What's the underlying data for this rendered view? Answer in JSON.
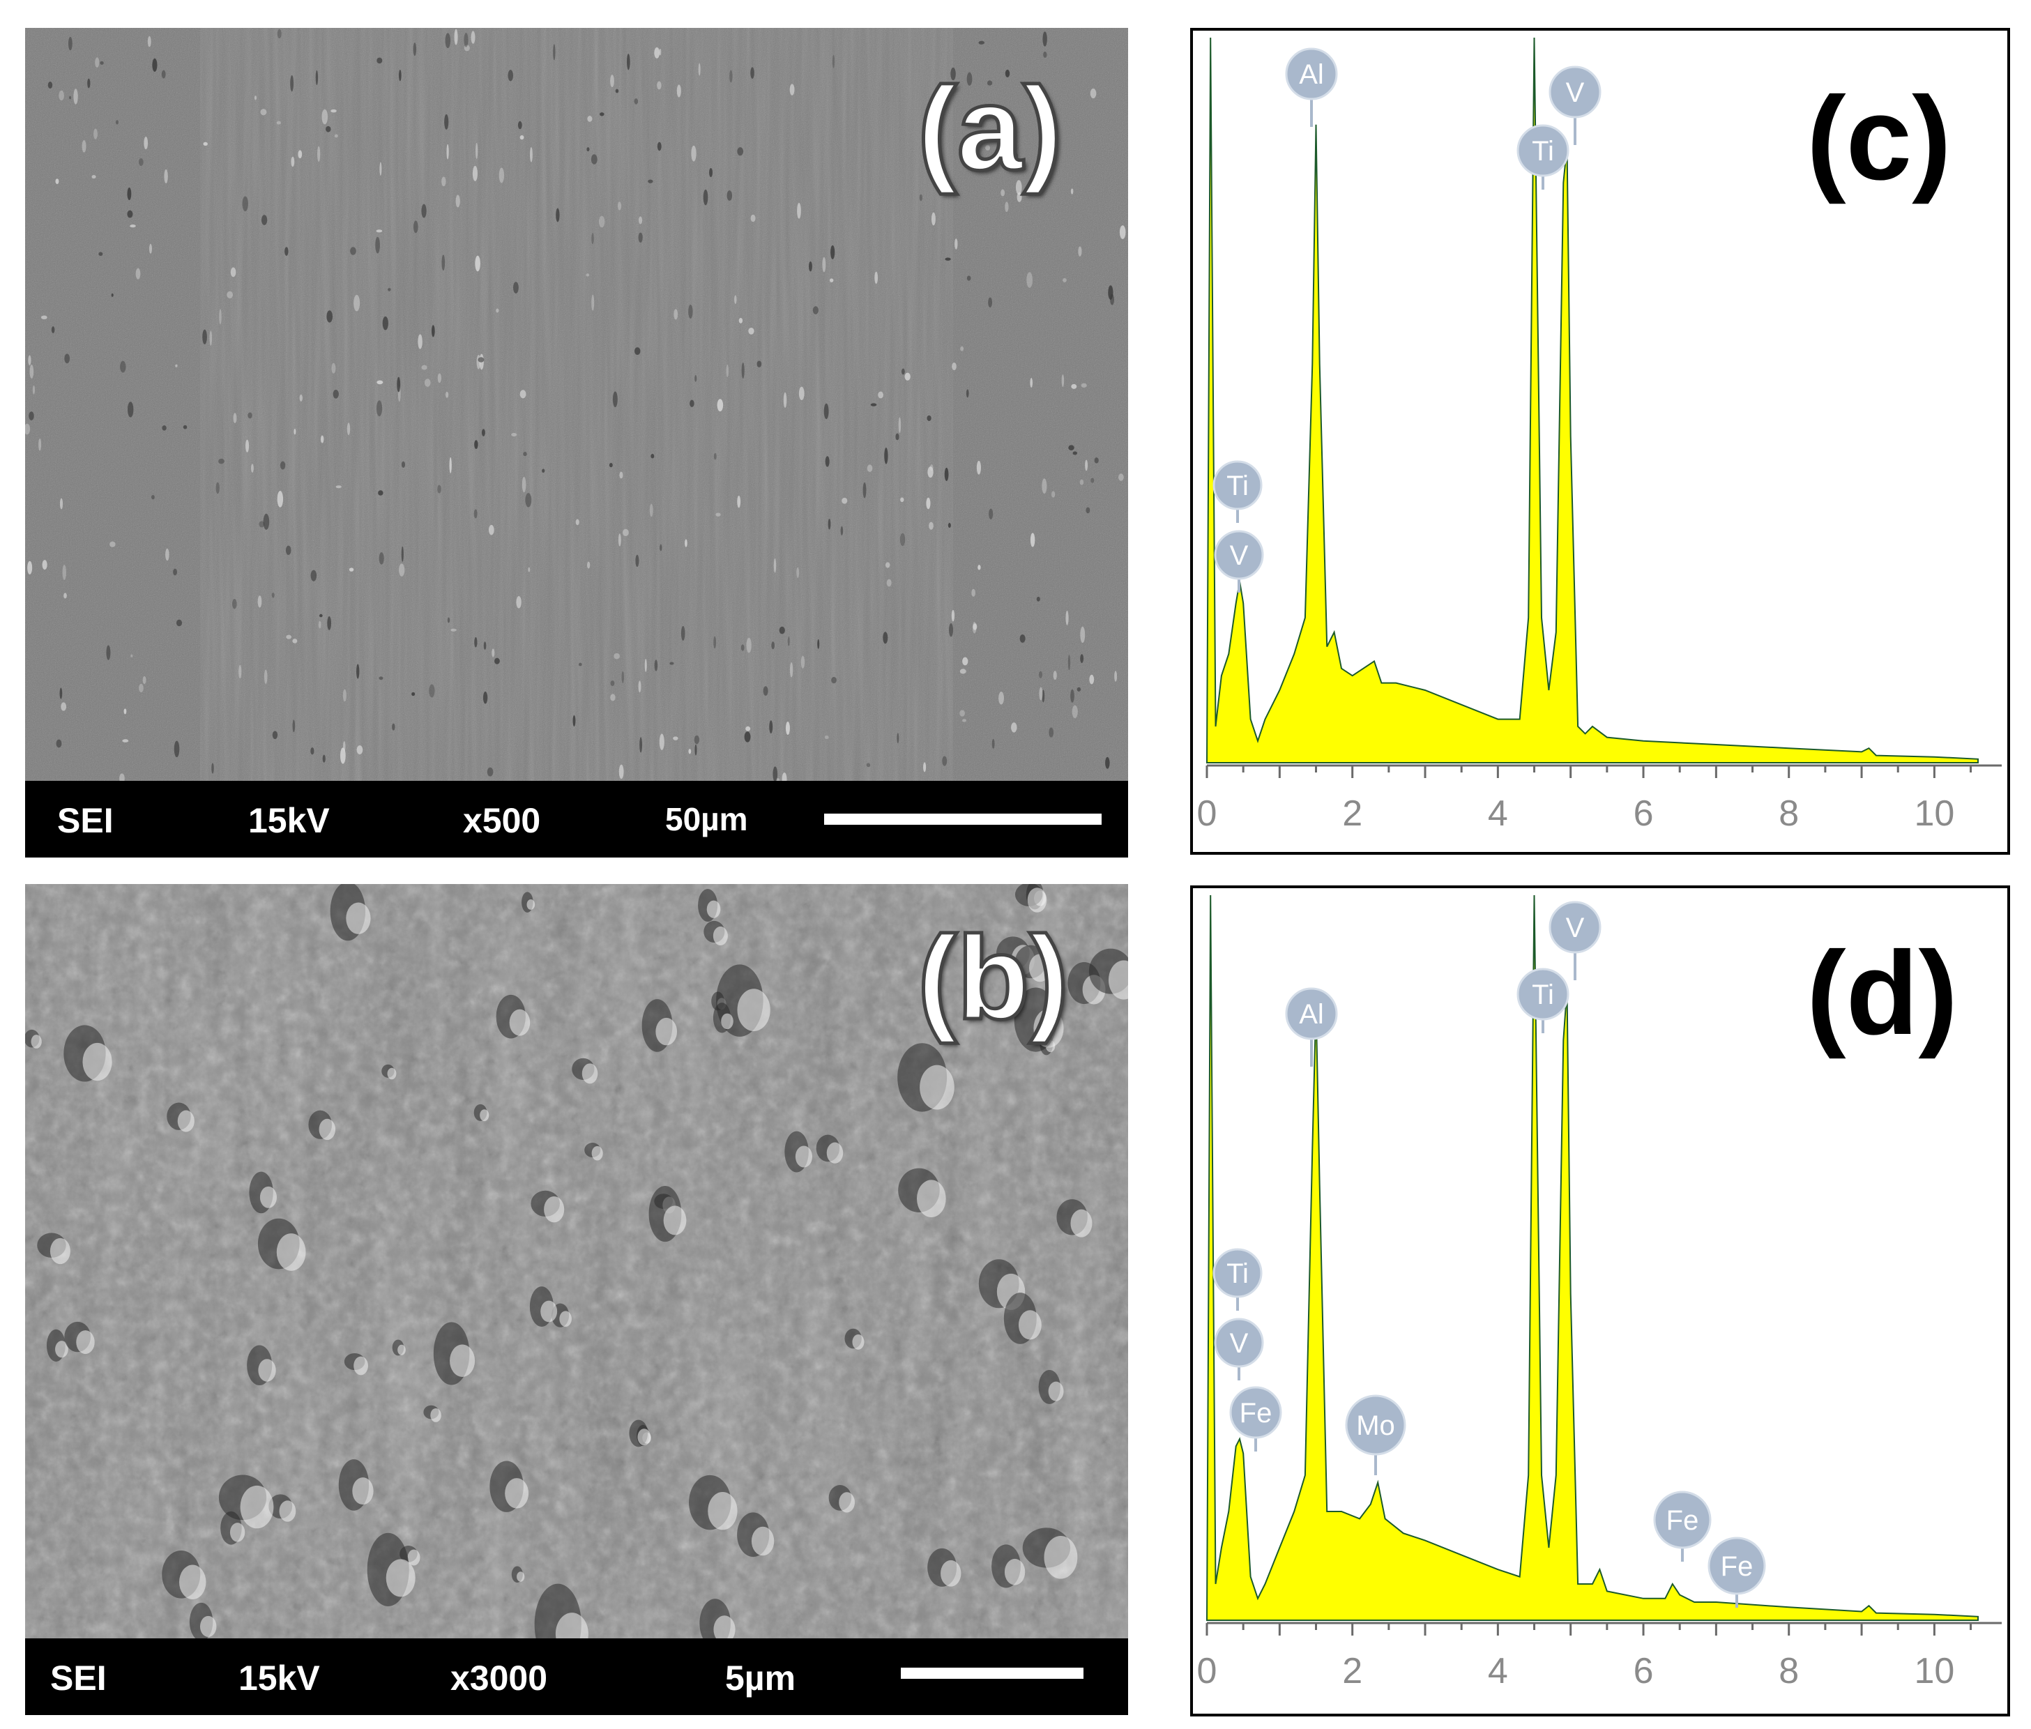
{
  "panels": {
    "a": {
      "label": "(a)",
      "mode": "SEI",
      "voltage": "15kV",
      "magnification": "x500",
      "scale": "50µm"
    },
    "b": {
      "label": "(b)",
      "mode": "SEI",
      "voltage": "15kV",
      "magnification": "x3000",
      "scale": "5µm"
    },
    "c": {
      "label": "(c)"
    },
    "d": {
      "label": "(d)"
    }
  },
  "chart_data": [
    {
      "type": "area",
      "panel": "(c)",
      "title": "",
      "xlabel": "",
      "ylabel": "",
      "xlim": [
        0,
        10.6
      ],
      "xticks": [
        0,
        2,
        4,
        6,
        8,
        10
      ],
      "fill_color": "#ffff00",
      "x": [
        0,
        0.05,
        0.12,
        0.2,
        0.3,
        0.4,
        0.45,
        0.5,
        0.6,
        0.7,
        0.8,
        1.0,
        1.2,
        1.35,
        1.45,
        1.5,
        1.55,
        1.65,
        1.75,
        1.85,
        2.0,
        2.3,
        2.4,
        2.6,
        3.0,
        3.5,
        4.0,
        4.3,
        4.42,
        4.5,
        4.6,
        4.7,
        4.8,
        4.9,
        4.95,
        5.0,
        5.1,
        5.2,
        5.3,
        5.5,
        6.0,
        7.0,
        8.0,
        9.0,
        9.1,
        9.2,
        10.0,
        10.6
      ],
      "series": [
        {
          "values": [
            0,
            100,
            5,
            12,
            15,
            22,
            25,
            22,
            6,
            3,
            6,
            10,
            15,
            20,
            55,
            88,
            55,
            16,
            18,
            13,
            12,
            14,
            11,
            11,
            10,
            8,
            6,
            6,
            20,
            100,
            20,
            10,
            18,
            80,
            85,
            45,
            5,
            4,
            5,
            3.5,
            3,
            2.5,
            2,
            1.5,
            2,
            1,
            0.8,
            0.5
          ]
        }
      ],
      "peak_labels": [
        "Al",
        "Ti",
        "V",
        "Ti",
        "V"
      ]
    },
    {
      "type": "area",
      "panel": "(d)",
      "title": "",
      "xlabel": "",
      "ylabel": "",
      "xlim": [
        0,
        10.6
      ],
      "xticks": [
        0,
        2,
        4,
        6,
        8,
        10
      ],
      "fill_color": "#ffff00",
      "x": [
        0,
        0.05,
        0.12,
        0.2,
        0.3,
        0.4,
        0.45,
        0.5,
        0.6,
        0.7,
        0.8,
        1.0,
        1.2,
        1.35,
        1.45,
        1.5,
        1.55,
        1.65,
        1.85,
        2.1,
        2.25,
        2.35,
        2.45,
        2.7,
        3.0,
        3.5,
        4.0,
        4.3,
        4.42,
        4.5,
        4.6,
        4.7,
        4.8,
        4.9,
        4.95,
        5.0,
        5.1,
        5.3,
        5.4,
        5.5,
        6.0,
        6.3,
        6.4,
        6.5,
        6.7,
        7.0,
        8.0,
        9.0,
        9.1,
        9.2,
        10.0,
        10.6
      ],
      "series": [
        {
          "values": [
            0,
            100,
            5,
            10,
            15,
            24,
            25,
            23,
            6,
            3,
            5,
            10,
            15,
            20,
            65,
            85,
            60,
            15,
            15,
            14,
            16,
            19,
            14,
            12,
            11,
            9,
            7,
            6,
            20,
            100,
            20,
            10,
            20,
            80,
            87,
            45,
            5,
            5,
            7,
            4,
            3,
            3,
            5,
            3.5,
            2.5,
            2.5,
            1.8,
            1.2,
            2,
            1,
            0.8,
            0.5
          ]
        }
      ],
      "peak_labels": [
        "Al",
        "Ti",
        "V",
        "Ti",
        "V",
        "Fe",
        "Mo",
        "Fe",
        "Fe"
      ]
    }
  ]
}
